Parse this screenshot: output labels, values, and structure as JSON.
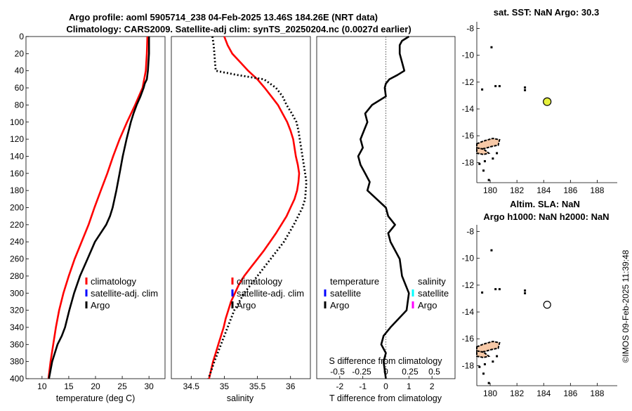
{
  "header": {
    "title_line1": "Argo profile: aoml 5905714_238 04-Feb-2025 13.46S 184.26E (NRT data)",
    "title_line2": "Climatology: CARS2009. Satellite-adj clim: synTS_20250204.nc (0.0027d earlier)"
  },
  "colors": {
    "climatology": "#ff0000",
    "satellite": "#0000ff",
    "argo": "#000000",
    "sat_salinity": "#00ffff",
    "argo_salinity": "#ff00ff",
    "marker_fill": "#e6f03c",
    "land": "#f7c9a7"
  },
  "chart_data": [
    {
      "type": "line",
      "id": "temperature",
      "xlabel": "temperature (deg C)",
      "ylabel": "",
      "xlim": [
        7,
        33
      ],
      "ylim": [
        400,
        0
      ],
      "xticks": [
        "10",
        "15",
        "20",
        "25",
        "30"
      ],
      "yticks": [
        "0",
        "20",
        "40",
        "60",
        "80",
        "100",
        "120",
        "140",
        "160",
        "180",
        "200",
        "220",
        "240",
        "260",
        "280",
        "300",
        "320",
        "340",
        "360",
        "380",
        "400"
      ],
      "legend": [
        "climatology",
        "satellite-adj. clim",
        "Argo"
      ],
      "series": [
        {
          "name": "climatology",
          "depth": [
            0,
            20,
            40,
            60,
            80,
            100,
            120,
            140,
            160,
            180,
            200,
            220,
            240,
            260,
            280,
            300,
            320,
            340,
            360,
            380,
            400
          ],
          "values": [
            29.7,
            29.6,
            29.4,
            28.8,
            27.4,
            25.9,
            24.5,
            23.3,
            22.2,
            21.0,
            19.8,
            18.7,
            17.4,
            16.1,
            15.0,
            14.0,
            13.2,
            12.6,
            12.1,
            11.6,
            11.2
          ]
        },
        {
          "name": "Argo",
          "depth": [
            0,
            10,
            20,
            30,
            40,
            50,
            55,
            60,
            70,
            80,
            90,
            100,
            120,
            140,
            160,
            180,
            200,
            210,
            220,
            240,
            260,
            280,
            300,
            320,
            340,
            350,
            360,
            380,
            400
          ],
          "values": [
            30.0,
            30.0,
            30.0,
            29.9,
            29.8,
            29.6,
            29.2,
            29.0,
            28.4,
            27.7,
            27.1,
            26.6,
            25.8,
            25.1,
            24.5,
            23.9,
            23.2,
            22.7,
            22.0,
            19.9,
            18.5,
            17.1,
            16.0,
            15.1,
            14.3,
            13.7,
            12.9,
            11.9,
            11.3
          ]
        }
      ]
    },
    {
      "type": "line",
      "id": "salinity",
      "xlabel": "salinity",
      "ylabel": "",
      "xlim": [
        34.2,
        36.3
      ],
      "ylim": [
        400,
        0
      ],
      "xticks": [
        "34.5",
        "35",
        "35.5",
        "36"
      ],
      "legend": [
        "climatology",
        "satellite-adj. clim",
        "Argo"
      ],
      "series": [
        {
          "name": "climatology",
          "depth": [
            0,
            10,
            20,
            30,
            40,
            50,
            60,
            70,
            80,
            90,
            100,
            110,
            120,
            130,
            140,
            150,
            160,
            170,
            180,
            190,
            200,
            210,
            220,
            230,
            240,
            250,
            260,
            270,
            280,
            290,
            300,
            310,
            320,
            330,
            340,
            350,
            360,
            370,
            380,
            390,
            400
          ],
          "values": [
            35.0,
            35.05,
            35.12,
            35.24,
            35.36,
            35.5,
            35.61,
            35.71,
            35.81,
            35.88,
            35.95,
            36.0,
            36.04,
            36.06,
            36.08,
            36.11,
            36.13,
            36.12,
            36.1,
            36.06,
            36.0,
            35.94,
            35.86,
            35.78,
            35.69,
            35.6,
            35.5,
            35.4,
            35.3,
            35.22,
            35.16,
            35.1,
            35.06,
            35.02,
            34.99,
            34.95,
            34.91,
            34.87,
            34.83,
            34.8,
            34.77
          ]
        },
        {
          "name": "Argo",
          "depth": [
            0,
            10,
            20,
            30,
            40,
            45,
            50,
            60,
            70,
            80,
            90,
            100,
            110,
            120,
            130,
            140,
            150,
            160,
            170,
            180,
            190,
            200,
            220,
            240,
            260,
            280,
            300,
            320,
            340,
            360,
            380,
            400
          ],
          "values": [
            34.82,
            34.84,
            34.85,
            34.86,
            34.87,
            35.2,
            35.6,
            35.78,
            35.88,
            35.94,
            36.02,
            36.09,
            36.12,
            36.14,
            36.16,
            36.18,
            36.2,
            36.22,
            36.24,
            36.23,
            36.22,
            36.18,
            36.05,
            35.9,
            35.7,
            35.5,
            35.3,
            35.15,
            35.05,
            34.95,
            34.85,
            34.76
          ]
        }
      ]
    },
    {
      "type": "line",
      "id": "difference",
      "xlabel": "T difference from climatology",
      "xlabel_top": "S difference from climatology",
      "xlim": [
        -3,
        3
      ],
      "ylim": [
        400,
        0
      ],
      "xticks": [
        "-2",
        "-1",
        "0",
        "1",
        "2"
      ],
      "xticks_salinity": [
        "-0.5",
        "-0.25",
        "0",
        "0.25",
        "0.5"
      ],
      "legend_temperature": {
        "title": "temperature",
        "items": [
          "satellite",
          "Argo"
        ]
      },
      "legend_salinity": {
        "title": "salinity",
        "items": [
          "satellite",
          "Argo"
        ]
      },
      "series": [
        {
          "name": "Argo T difference",
          "depth": [
            0,
            5,
            10,
            20,
            30,
            40,
            45,
            50,
            55,
            60,
            70,
            80,
            90,
            100,
            110,
            120,
            130,
            140,
            150,
            160,
            170,
            180,
            190,
            200,
            210,
            220,
            230,
            240,
            260,
            280,
            300,
            320,
            340,
            350,
            360,
            370,
            380,
            390,
            400
          ],
          "values": [
            1.0,
            0.7,
            0.6,
            0.6,
            0.7,
            0.8,
            0.5,
            0.15,
            0.0,
            -0.05,
            0.0,
            -0.6,
            -0.9,
            -0.8,
            -0.95,
            -1.1,
            -1.0,
            -1.2,
            -1.1,
            -0.9,
            -0.7,
            -0.8,
            -0.4,
            0.0,
            0.1,
            0.4,
            0.1,
            0.2,
            0.6,
            0.7,
            1.0,
            0.9,
            0.2,
            -0.1,
            -0.2,
            0.0,
            -0.1,
            -0.05,
            0.0
          ]
        }
      ]
    },
    {
      "type": "scatter",
      "id": "map_sst",
      "title": "sat. SST: NaN Argo: 30.3",
      "xlim": [
        179,
        189.5
      ],
      "ylim": [
        -19.5,
        -7.5
      ],
      "xticks": [
        "180",
        "182",
        "184",
        "186",
        "188"
      ],
      "yticks": [
        "-8",
        "-10",
        "-12",
        "-14",
        "-16",
        "-18"
      ],
      "points": [
        {
          "name": "Argo",
          "x": 184.26,
          "y": -13.46
        }
      ]
    },
    {
      "type": "scatter",
      "id": "map_sla",
      "title_line1": "Altim. SLA: NaN",
      "title_line2": "Argo h1000: NaN h2000: NaN",
      "xlim": [
        179,
        189.5
      ],
      "ylim": [
        -19.5,
        -7.5
      ],
      "xticks": [
        "180",
        "182",
        "184",
        "186",
        "188"
      ],
      "yticks": [
        "-8",
        "-10",
        "-12",
        "-14",
        "-16",
        "-18"
      ],
      "points": [
        {
          "name": "Argo",
          "x": 184.26,
          "y": -13.46
        }
      ]
    }
  ],
  "footer": {
    "credit": "©IMOS 09-Feb-2025 11:39:48"
  }
}
